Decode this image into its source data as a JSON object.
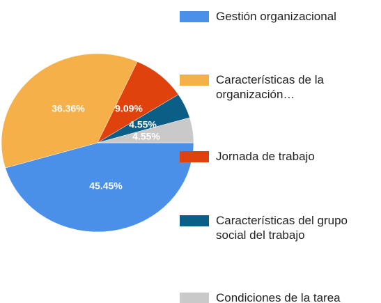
{
  "chart_data": {
    "type": "pie",
    "categories": [
      "Gestión organizacional",
      "Características  de la organización…",
      "Jornada de trabajo",
      "Características  del grupo social del trabajo",
      "Condiciones  de la tarea"
    ],
    "values": [
      45.45,
      36.36,
      9.09,
      4.55,
      4.55
    ],
    "value_labels": [
      "45.45%",
      "36.36%",
      "9.09%",
      "4.55%",
      "4.55%"
    ],
    "colors": [
      "#4a8fe8",
      "#f5b04a",
      "#e0420e",
      "#0b5e86",
      "#c9c9c9"
    ]
  }
}
